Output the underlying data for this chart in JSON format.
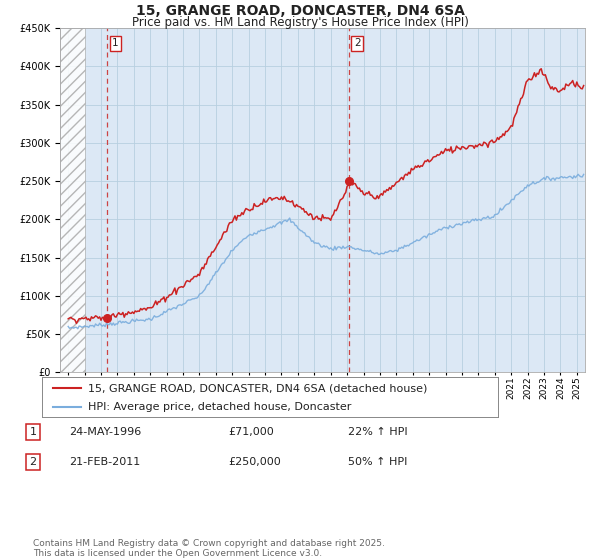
{
  "title": "15, GRANGE ROAD, DONCASTER, DN4 6SA",
  "subtitle": "Price paid vs. HM Land Registry's House Price Index (HPI)",
  "ylim": [
    0,
    450000
  ],
  "yticks": [
    0,
    50000,
    100000,
    150000,
    200000,
    250000,
    300000,
    350000,
    400000,
    450000
  ],
  "xlim_start": 1993.5,
  "xlim_end": 2025.5,
  "background_color": "#ffffff",
  "plot_bg_color": "#dce8f5",
  "grid_color": "#b8cfe0",
  "line1_color": "#cc2222",
  "line2_color": "#7aaddd",
  "marker_color": "#cc2222",
  "vline_color": "#cc4444",
  "sale1_x": 1996.38,
  "sale1_y": 71000,
  "sale2_x": 2011.12,
  "sale2_y": 250000,
  "hatch_end": 1995.0,
  "legend_line1": "15, GRANGE ROAD, DONCASTER, DN4 6SA (detached house)",
  "legend_line2": "HPI: Average price, detached house, Doncaster",
  "table_row1_num": "1",
  "table_row1_date": "24-MAY-1996",
  "table_row1_price": "£71,000",
  "table_row1_hpi": "22% ↑ HPI",
  "table_row2_num": "2",
  "table_row2_date": "21-FEB-2011",
  "table_row2_price": "£250,000",
  "table_row2_hpi": "50% ↑ HPI",
  "footnote": "Contains HM Land Registry data © Crown copyright and database right 2025.\nThis data is licensed under the Open Government Licence v3.0.",
  "title_fontsize": 10,
  "subtitle_fontsize": 8.5,
  "tick_fontsize": 7,
  "legend_fontsize": 8,
  "table_fontsize": 8,
  "footnote_fontsize": 6.5
}
